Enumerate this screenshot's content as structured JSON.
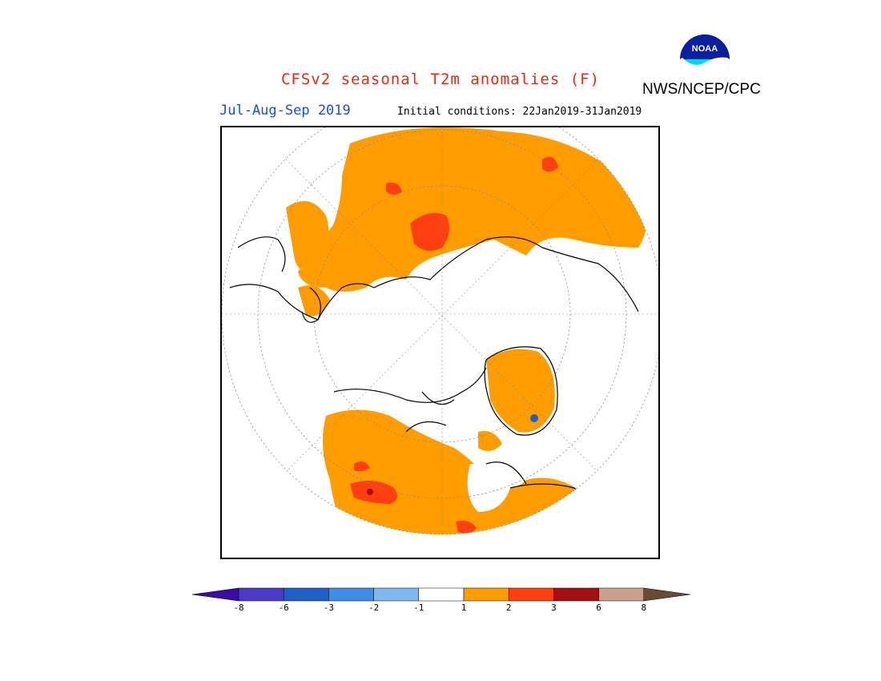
{
  "title": "CFSv2 seasonal T2m anomalies (F)",
  "season": "Jul-Aug-Sep 2019",
  "initial_conditions": "Initial conditions: 22Jan2019-31Jan2019",
  "organization": "NWS/NCEP/CPC",
  "logo_text": "NOAA",
  "colors": {
    "title": "#e8290f",
    "season": "#1c4fd6",
    "land_outline": "#000000",
    "graticule": "#888888",
    "ocean": "#ffffff"
  },
  "colorbar": {
    "ticks": [
      "-8",
      "-6",
      "-3",
      "-2",
      "-1",
      "1",
      "2",
      "3",
      "6",
      "8"
    ],
    "bins": [
      {
        "color": "#3a0ca3",
        "role": "below -8"
      },
      {
        "color": "#4b3cc7"
      },
      {
        "color": "#1f5fc9"
      },
      {
        "color": "#3f8ee6"
      },
      {
        "color": "#7fb7ef"
      },
      {
        "color": "#ffffff"
      },
      {
        "color": "#ff9d00"
      },
      {
        "color": "#ff3f0f"
      },
      {
        "color": "#a50f0f"
      },
      {
        "color": "#c8a08c"
      },
      {
        "color": "#6b4a35",
        "role": "above 8"
      }
    ]
  }
}
